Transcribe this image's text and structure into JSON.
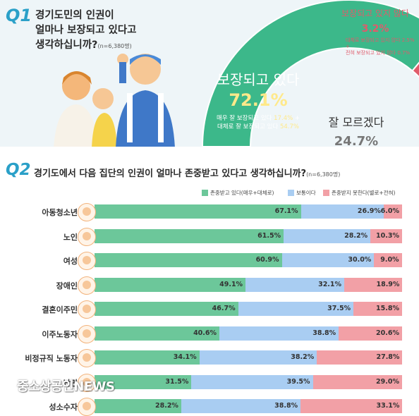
{
  "q1": {
    "number": "Q1",
    "title_lines": [
      "경기도민의 인권이",
      "얼마나 보장되고 있다고",
      "생각하십니까?"
    ],
    "n": "(n=6,380명)",
    "secured": {
      "label": "보장되고 있다",
      "value": "72.1%",
      "detail1_prefix": "매우 잘 보장되고 있다 ",
      "detail1_value": "17.4%",
      "detail1_suffix": " +",
      "detail2_prefix": "대체로 잘 보장되고 있다 ",
      "detail2_value": "54.7%"
    },
    "dont_know": {
      "label": "잘 모르겠다",
      "value": "24.7%"
    },
    "not_secured": {
      "label": "보장되고 있지 않다",
      "value": "3.2%",
      "detail1_prefix": "대체로 보장되고 있지 않다 ",
      "detail1_value": "2.5%",
      "detail1_suffix": " +",
      "detail2_prefix": "전혀 보장되고 있지 않다 ",
      "detail2_value": "0.7%"
    }
  },
  "q2": {
    "number": "Q2",
    "title": "경기도에서 다음 집단의 인권이 얼마나 존중받고 있다고 생각하십니까?",
    "n": "(n=6,380명)"
  },
  "watermark": "중소상공인NEWS",
  "colors": {
    "respected": "#6cc79a",
    "neutral": "#a9cdf2",
    "not_respected": "#f2a0a6",
    "donut_green": "#3cb88a",
    "donut_gray": "#d9dcdf",
    "donut_red": "#e05b6b"
  },
  "chart_data": [
    {
      "type": "pie",
      "title": "경기도민의 인권이 얼마나 보장되고 있다고 생각하십니까?",
      "labels": [
        "보장되고 있다",
        "잘 모르겠다",
        "보장되고 있지 않다"
      ],
      "values": [
        72.1,
        24.7,
        3.2
      ]
    },
    {
      "type": "bar",
      "orientation": "horizontal",
      "stacked": true,
      "title": "경기도에서 다음 집단의 인권이 얼마나 존중받고 있다고 생각하십니까?",
      "xlim": [
        0,
        100
      ],
      "legend_position": "top-right",
      "categories": [
        "아동청소년",
        "노인",
        "여성",
        "장애인",
        "결혼이주민",
        "이주노동자",
        "비정규직 노동자",
        "난민",
        "성소수자"
      ],
      "series": [
        {
          "name": "존중받고 있다(매우+대체로)",
          "values": [
            67.1,
            61.5,
            60.9,
            49.1,
            46.7,
            40.6,
            34.1,
            31.5,
            28.2
          ]
        },
        {
          "name": "보통이다",
          "values": [
            26.9,
            28.2,
            30.0,
            32.1,
            37.5,
            38.8,
            38.2,
            39.5,
            38.8
          ]
        },
        {
          "name": "존중받지 못한다(별로+전혀)",
          "values": [
            6.0,
            10.3,
            9.0,
            18.9,
            15.8,
            20.6,
            27.8,
            29.0,
            33.1
          ]
        }
      ]
    }
  ]
}
